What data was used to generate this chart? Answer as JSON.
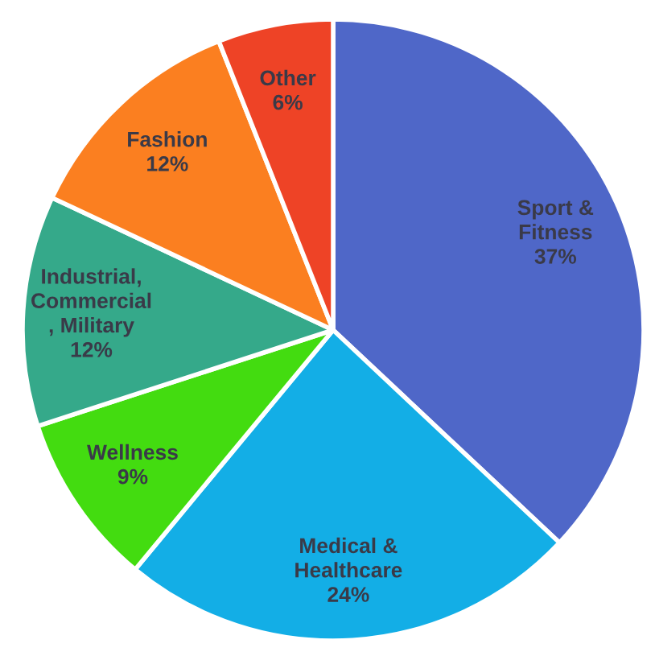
{
  "chart_data": {
    "type": "pie",
    "categories": [
      "Sport &\nFitness",
      "Medical &\nHealthcare",
      "Wellness",
      "Industrial,\nCommercial\n, Military",
      "Fashion",
      "Other"
    ],
    "values": [
      37,
      24,
      9,
      12,
      12,
      6
    ],
    "value_labels": [
      "37%",
      "24%",
      "9%",
      "12%",
      "12%",
      "6%"
    ],
    "colors": [
      "#4f67c8",
      "#13aee6",
      "#43dc10",
      "#35a98a",
      "#fb7f20",
      "#ee4326"
    ]
  }
}
